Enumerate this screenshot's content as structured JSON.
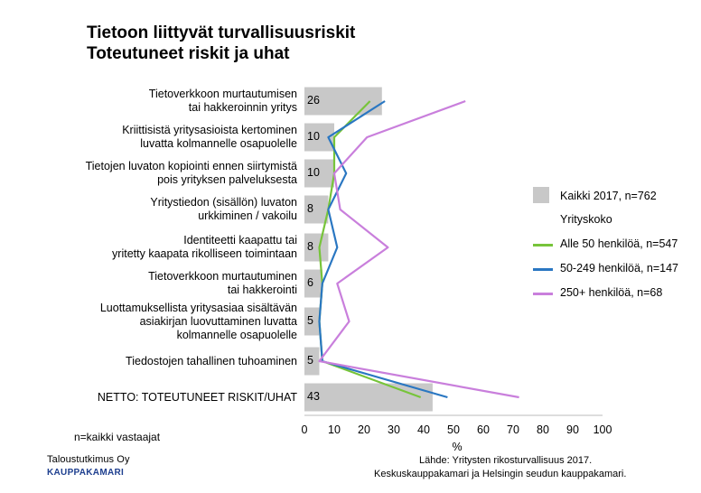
{
  "chart_data": {
    "type": "bar",
    "title": "Tietoon liittyvät turvallisuusriskit",
    "subtitle": "Toteutuneet riskit ja uhat",
    "categories": [
      "Tietoverkkoon murtautumisen\ntai hakkeroinnin yritys",
      "Kriittisistä yritysasioista kertominen\nluvatta kolmannelle osapuolelle",
      "Tietojen luvaton kopiointi ennen siirtymistä\npois yrityksen palveluksesta",
      "Yritystiedon (sisällön) luvaton\nurkkiminen / vakoilu",
      "Identiteetti kaapattu tai\nyritetty kaapata rikolliseen toimintaan",
      "Tietoverkkoon murtautuminen\ntai hakkerointi",
      "Luottamuksellista yritysasiaa sisältävän\nasiakirjan luovuttaminen luvatta\nkolmannelle osapuolelle",
      "Tiedostojen tahallinen tuhoaminen",
      "NETTO: TOTEUTUNEET RISKIT/UHAT"
    ],
    "series": [
      {
        "name": "Kaikki 2017, n=762",
        "kind": "bar",
        "color": "#c8c8c8",
        "values": [
          26,
          10,
          10,
          8,
          8,
          6,
          5,
          5,
          43
        ]
      },
      {
        "name": "Alle 50 henkilöä, n=547",
        "kind": "line",
        "color": "#77c43a",
        "values": [
          22,
          10,
          10,
          8,
          5,
          6,
          5,
          6,
          39
        ]
      },
      {
        "name": "50-249 henkilöä, n=147",
        "kind": "line",
        "color": "#2a77c2",
        "values": [
          27,
          8,
          14,
          8,
          11,
          6,
          5,
          6,
          48
        ]
      },
      {
        "name": "250+ henkilöä, n=68",
        "kind": "line",
        "color": "#c97fdc",
        "values": [
          54,
          21,
          10,
          12,
          28,
          11,
          15,
          5,
          72
        ]
      }
    ],
    "legend_group_label": "Yrityskoko",
    "xlabel": "%",
    "xlim": [
      0,
      100
    ],
    "xticks": [
      "0",
      "10",
      "20",
      "30",
      "40",
      "50",
      "60",
      "70",
      "80",
      "90",
      "100"
    ],
    "grid": false,
    "legend_position": "right"
  },
  "notes": {
    "base": "n=kaikki vastaajat",
    "source_line1": "Lähde: Yritysten rikosturvallisuus 2017.",
    "source_line2": "Keskuskauppakamari ja Helsingin seudun kauppakamari."
  },
  "logo": {
    "line1": "Taloustutkimus Oy",
    "line2": "KAUPPAKAMARI"
  }
}
